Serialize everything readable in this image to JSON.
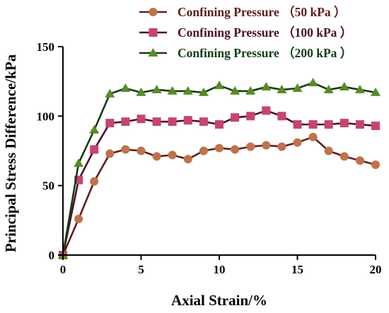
{
  "chart_data": {
    "type": "line",
    "xlabel": "Axial Strain/%",
    "ylabel": "Principal Stress Difference/kPa",
    "xlim": [
      0,
      20
    ],
    "ylim": [
      0,
      150
    ],
    "xticks": [
      0,
      5,
      10,
      15,
      20
    ],
    "yticks": [
      0,
      50,
      100,
      150
    ],
    "grid": false,
    "legend_position": "top-right",
    "x": [
      0,
      1,
      2,
      3,
      4,
      5,
      6,
      7,
      8,
      9,
      10,
      11,
      12,
      13,
      14,
      15,
      16,
      17,
      18,
      19,
      20
    ],
    "series": [
      {
        "name": "Confining Pressure （50 kPa ）",
        "marker": "circle",
        "color": "#5c1e1e",
        "marker_color": "#c0724a",
        "values": [
          0,
          26,
          53,
          73,
          76,
          75,
          71,
          72,
          69,
          75,
          77,
          76,
          78,
          79,
          78,
          81,
          85,
          75,
          71,
          68,
          65
        ]
      },
      {
        "name": "Confining Pressure （100 kPa ）",
        "marker": "square",
        "color": "#4d0d2e",
        "marker_color": "#c74470",
        "values": [
          0,
          54,
          76,
          95,
          96,
          98,
          96,
          96,
          97,
          96,
          94,
          99,
          100,
          104,
          100,
          94,
          94,
          94,
          95,
          94,
          93
        ]
      },
      {
        "name": "Confining Pressure （200 kPa ）",
        "marker": "triangle",
        "color": "#143d14",
        "marker_color": "#5a8a2a",
        "values": [
          0,
          66,
          90,
          116,
          120,
          117,
          119,
          118,
          118,
          117,
          122,
          118,
          118,
          121,
          119,
          120,
          124,
          119,
          121,
          119,
          117
        ]
      }
    ]
  }
}
